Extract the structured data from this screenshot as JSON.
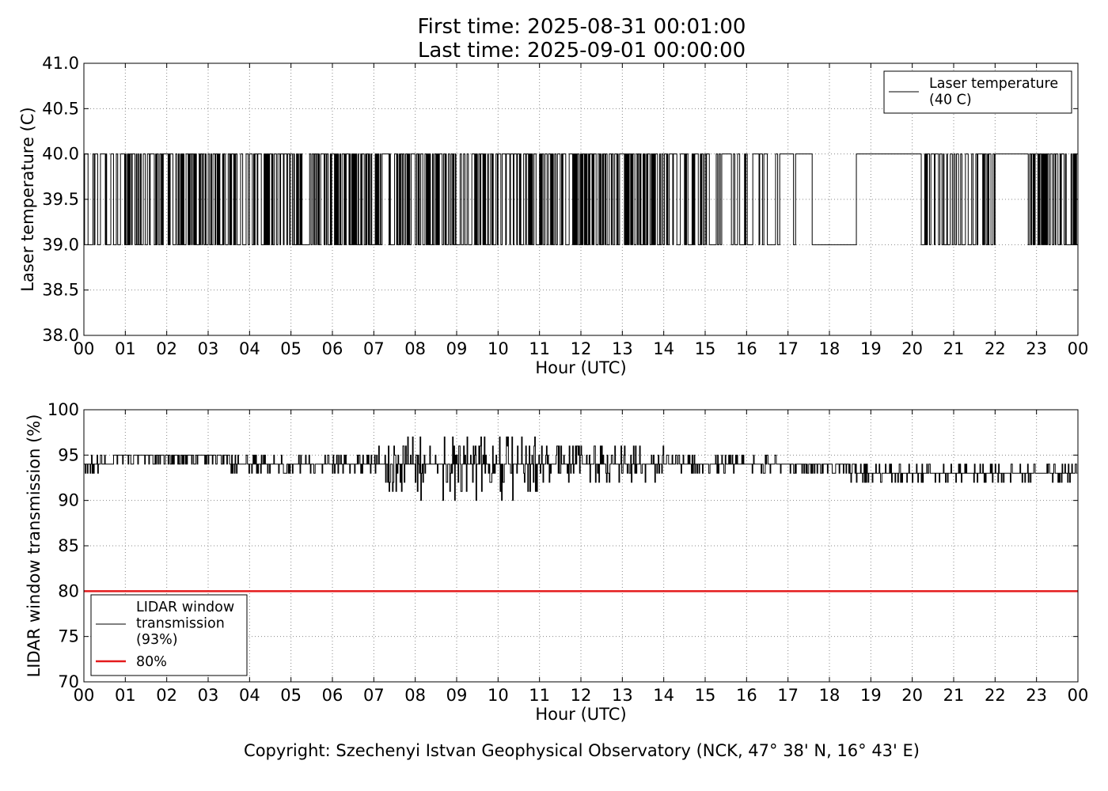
{
  "header": {
    "first_time": "First time: 2025-08-31 00:01:00",
    "last_time": "Last time: 2025-09-01 00:00:00"
  },
  "footer": {
    "copyright": "Copyright: Szechenyi Istvan Geophysical Observatory (NCK, 47° 38' N, 16° 43' E)"
  },
  "colors": {
    "series": "#000000",
    "threshold": "#e41a1c",
    "grid": "#888888"
  },
  "chart_data": [
    {
      "type": "line",
      "title": "",
      "xlabel": "Hour (UTC)",
      "ylabel": "Laser temperature (C)",
      "xlim": [
        0,
        24
      ],
      "ylim": [
        38.0,
        41.0
      ],
      "x_ticks": [
        "00",
        "01",
        "02",
        "03",
        "04",
        "05",
        "06",
        "07",
        "08",
        "09",
        "10",
        "11",
        "12",
        "13",
        "14",
        "15",
        "16",
        "17",
        "18",
        "19",
        "20",
        "21",
        "22",
        "23",
        "00"
      ],
      "y_ticks": [
        "38.0",
        "38.5",
        "39.0",
        "39.5",
        "40.0",
        "40.5",
        "41.0"
      ],
      "grid": true,
      "legend_position": "upper right",
      "series": [
        {
          "name": "Laser temperature\n(40 C)",
          "x_step_hours": 0.016667,
          "levels": [
            39.0,
            40.0
          ],
          "switching_activity": [
            {
              "from": 0.0,
              "to": 1.0,
              "level": "medium"
            },
            {
              "from": 1.0,
              "to": 7.2,
              "level": "high"
            },
            {
              "from": 7.2,
              "to": 7.35,
              "level": "none",
              "value": 40.0
            },
            {
              "from": 7.35,
              "to": 14.0,
              "level": "high"
            },
            {
              "from": 14.0,
              "to": 17.0,
              "level": "medium"
            },
            {
              "from": 17.0,
              "to": 17.6,
              "level": "low"
            },
            {
              "from": 17.6,
              "to": 18.6,
              "level": "none",
              "value": 39.0
            },
            {
              "from": 18.6,
              "to": 19.5,
              "level": "sparse"
            },
            {
              "from": 19.5,
              "to": 20.2,
              "level": "sparse"
            },
            {
              "from": 20.2,
              "to": 22.0,
              "level": "medium"
            },
            {
              "from": 22.0,
              "to": 22.8,
              "level": "none",
              "value": 40.0
            },
            {
              "from": 22.8,
              "to": 24.0,
              "level": "high"
            }
          ]
        }
      ]
    },
    {
      "type": "line",
      "title": "",
      "xlabel": "Hour (UTC)",
      "ylabel": "LIDAR window transmission (%)",
      "xlim": [
        0,
        24
      ],
      "ylim": [
        70,
        100
      ],
      "x_ticks": [
        "00",
        "01",
        "02",
        "03",
        "04",
        "05",
        "06",
        "07",
        "08",
        "09",
        "10",
        "11",
        "12",
        "13",
        "14",
        "15",
        "16",
        "17",
        "18",
        "19",
        "20",
        "21",
        "22",
        "23",
        "00"
      ],
      "y_ticks": [
        "70",
        "75",
        "80",
        "85",
        "90",
        "95",
        "100"
      ],
      "grid": true,
      "legend_position": "lower left",
      "series": [
        {
          "name": "LIDAR window\ntransmission\n(93%)",
          "x_step_hours": 0.016667,
          "profile": [
            {
              "from": 0.0,
              "to": 0.7,
              "base": 94,
              "amplitude": 1
            },
            {
              "from": 0.7,
              "to": 3.5,
              "base": 94.5,
              "amplitude": 1
            },
            {
              "from": 3.5,
              "to": 7.0,
              "base": 94,
              "amplitude": 1.5
            },
            {
              "from": 7.0,
              "to": 11.0,
              "base": 93.5,
              "amplitude": 3.5
            },
            {
              "from": 11.0,
              "to": 14.0,
              "base": 94,
              "amplitude": 2.5
            },
            {
              "from": 14.0,
              "to": 17.0,
              "base": 94,
              "amplitude": 1.5
            },
            {
              "from": 17.0,
              "to": 18.5,
              "base": 93.5,
              "amplitude": 0.5
            },
            {
              "from": 18.5,
              "to": 24.0,
              "base": 93,
              "amplitude": 1
            }
          ],
          "min": 89,
          "max": 97
        },
        {
          "name": "80%",
          "x": [
            0,
            24
          ],
          "values": [
            80,
            80
          ]
        }
      ]
    }
  ]
}
